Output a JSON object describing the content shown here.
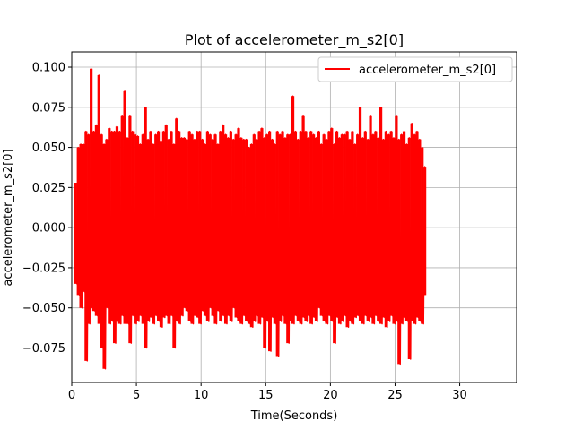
{
  "chart_data": {
    "type": "line",
    "title": "Plot of accelerometer_m_s2[0]",
    "xlabel": "Time(Seconds)",
    "ylabel": "accelerometer_m_s2[0]",
    "xlim": [
      0,
      34.4
    ],
    "ylim": [
      -0.0965,
      0.1095
    ],
    "xticks": [
      0,
      5,
      10,
      15,
      20,
      25,
      30
    ],
    "xtick_labels": [
      "0",
      "5",
      "10",
      "15",
      "20",
      "25",
      "30"
    ],
    "yticks": [
      -0.075,
      -0.05,
      -0.025,
      0.0,
      0.025,
      0.05,
      0.075,
      0.1
    ],
    "ytick_labels": [
      "−0.075",
      "−0.050",
      "−0.025",
      "0.000",
      "0.025",
      "0.050",
      "0.075",
      "0.100"
    ],
    "grid": true,
    "legend_position": "top-right",
    "series": [
      {
        "name": "accelerometer_m_s2[0]",
        "color": "#ff0000",
        "x": [
          0.3,
          0.5,
          0.7,
          0.9,
          1.1,
          1.3,
          1.5,
          1.7,
          1.9,
          2.1,
          2.3,
          2.5,
          2.7,
          2.9,
          3.1,
          3.3,
          3.5,
          3.7,
          3.9,
          4.1,
          4.3,
          4.5,
          4.7,
          4.9,
          5.1,
          5.3,
          5.5,
          5.7,
          5.9,
          6.1,
          6.3,
          6.5,
          6.7,
          6.9,
          7.1,
          7.3,
          7.5,
          7.7,
          7.9,
          8.1,
          8.3,
          8.5,
          8.7,
          8.9,
          9.1,
          9.3,
          9.5,
          9.7,
          9.9,
          10.1,
          10.3,
          10.5,
          10.7,
          10.9,
          11.1,
          11.3,
          11.5,
          11.7,
          11.9,
          12.1,
          12.3,
          12.5,
          12.7,
          12.9,
          13.1,
          13.3,
          13.5,
          13.7,
          13.9,
          14.1,
          14.3,
          14.5,
          14.7,
          14.9,
          15.1,
          15.3,
          15.5,
          15.7,
          15.9,
          16.1,
          16.3,
          16.5,
          16.7,
          16.9,
          17.1,
          17.3,
          17.5,
          17.7,
          17.9,
          18.1,
          18.3,
          18.5,
          18.7,
          18.9,
          19.1,
          19.3,
          19.5,
          19.7,
          19.9,
          20.1,
          20.3,
          20.5,
          20.7,
          20.9,
          21.1,
          21.3,
          21.5,
          21.7,
          21.9,
          22.1,
          22.3,
          22.5,
          22.7,
          22.9,
          23.1,
          23.3,
          23.5,
          23.7,
          23.9,
          24.1,
          24.3,
          24.5,
          24.7,
          24.9,
          25.1,
          25.3,
          25.5,
          25.7,
          25.9,
          26.1,
          26.3,
          26.5,
          26.7,
          26.9,
          27.1,
          27.3
        ],
        "high": [
          0.028,
          0.05,
          0.052,
          0.052,
          0.06,
          0.058,
          0.099,
          0.06,
          0.064,
          0.095,
          0.058,
          0.052,
          0.055,
          0.062,
          0.06,
          0.06,
          0.063,
          0.06,
          0.07,
          0.085,
          0.056,
          0.07,
          0.06,
          0.058,
          0.057,
          0.052,
          0.058,
          0.075,
          0.055,
          0.06,
          0.052,
          0.058,
          0.06,
          0.054,
          0.06,
          0.064,
          0.055,
          0.06,
          0.052,
          0.068,
          0.06,
          0.056,
          0.056,
          0.055,
          0.06,
          0.058,
          0.055,
          0.06,
          0.06,
          0.055,
          0.052,
          0.06,
          0.058,
          0.055,
          0.058,
          0.052,
          0.06,
          0.064,
          0.058,
          0.056,
          0.06,
          0.055,
          0.058,
          0.062,
          0.056,
          0.055,
          0.055,
          0.05,
          0.052,
          0.058,
          0.055,
          0.06,
          0.062,
          0.056,
          0.058,
          0.06,
          0.055,
          0.052,
          0.06,
          0.058,
          0.06,
          0.056,
          0.058,
          0.058,
          0.082,
          0.06,
          0.055,
          0.06,
          0.07,
          0.06,
          0.056,
          0.06,
          0.058,
          0.056,
          0.06,
          0.052,
          0.058,
          0.055,
          0.06,
          0.062,
          0.052,
          0.06,
          0.056,
          0.058,
          0.058,
          0.06,
          0.055,
          0.06,
          0.052,
          0.058,
          0.075,
          0.056,
          0.06,
          0.055,
          0.07,
          0.058,
          0.06,
          0.056,
          0.075,
          0.055,
          0.06,
          0.058,
          0.06,
          0.056,
          0.07,
          0.055,
          0.058,
          0.06,
          0.052,
          0.056,
          0.065,
          0.058,
          0.06,
          0.055,
          0.05,
          0.038
        ],
        "low": [
          -0.035,
          -0.042,
          -0.05,
          -0.04,
          -0.083,
          -0.06,
          -0.05,
          -0.052,
          -0.055,
          -0.06,
          -0.075,
          -0.088,
          -0.05,
          -0.06,
          -0.058,
          -0.072,
          -0.058,
          -0.06,
          -0.055,
          -0.06,
          -0.06,
          -0.072,
          -0.055,
          -0.06,
          -0.058,
          -0.055,
          -0.06,
          -0.075,
          -0.058,
          -0.056,
          -0.06,
          -0.055,
          -0.058,
          -0.062,
          -0.056,
          -0.055,
          -0.06,
          -0.055,
          -0.075,
          -0.058,
          -0.06,
          -0.055,
          -0.05,
          -0.052,
          -0.058,
          -0.06,
          -0.055,
          -0.056,
          -0.06,
          -0.052,
          -0.055,
          -0.058,
          -0.05,
          -0.055,
          -0.06,
          -0.052,
          -0.058,
          -0.055,
          -0.06,
          -0.055,
          -0.058,
          -0.05,
          -0.056,
          -0.058,
          -0.06,
          -0.055,
          -0.058,
          -0.06,
          -0.062,
          -0.058,
          -0.055,
          -0.06,
          -0.056,
          -0.075,
          -0.058,
          -0.077,
          -0.056,
          -0.06,
          -0.08,
          -0.058,
          -0.055,
          -0.06,
          -0.072,
          -0.058,
          -0.06,
          -0.055,
          -0.058,
          -0.06,
          -0.056,
          -0.058,
          -0.055,
          -0.06,
          -0.056,
          -0.058,
          -0.05,
          -0.055,
          -0.058,
          -0.06,
          -0.055,
          -0.058,
          -0.072,
          -0.056,
          -0.06,
          -0.058,
          -0.055,
          -0.062,
          -0.058,
          -0.06,
          -0.056,
          -0.055,
          -0.058,
          -0.06,
          -0.055,
          -0.058,
          -0.056,
          -0.06,
          -0.055,
          -0.058,
          -0.06,
          -0.056,
          -0.062,
          -0.058,
          -0.055,
          -0.06,
          -0.058,
          -0.085,
          -0.06,
          -0.056,
          -0.058,
          -0.082,
          -0.058,
          -0.06,
          -0.056,
          -0.058,
          -0.06,
          -0.042
        ]
      }
    ]
  }
}
